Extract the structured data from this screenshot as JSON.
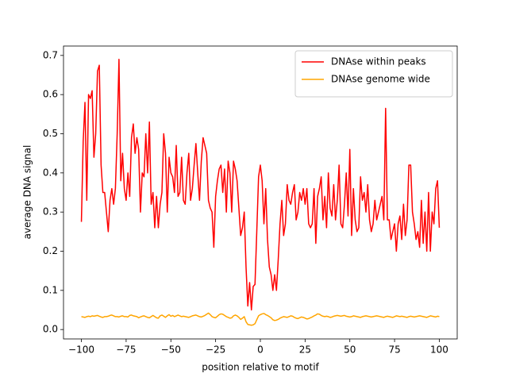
{
  "chart_data": {
    "type": "line",
    "xlabel": "position relative to motif",
    "ylabel": "average DNA signal",
    "xlim": [
      -110,
      110
    ],
    "ylim": [
      -0.024,
      0.724
    ],
    "xticks": [
      {
        "value": -100,
        "label": "−100"
      },
      {
        "value": -75,
        "label": "−75"
      },
      {
        "value": -50,
        "label": "−50"
      },
      {
        "value": -25,
        "label": "−25"
      },
      0,
      25,
      50,
      75,
      100
    ],
    "yticks": [
      {
        "value": 0,
        "label": "0.0"
      },
      0.1,
      0.2,
      0.3,
      0.4,
      0.5,
      0.6,
      0.7
    ],
    "legend": "upper right",
    "x": [
      -100,
      -99,
      -98,
      -97,
      -96,
      -95,
      -94,
      -93,
      -92,
      -91,
      -90,
      -89,
      -88,
      -87,
      -86,
      -85,
      -84,
      -83,
      -82,
      -81,
      -80,
      -79,
      -78,
      -77,
      -76,
      -75,
      -74,
      -73,
      -72,
      -71,
      -70,
      -69,
      -68,
      -67,
      -66,
      -65,
      -64,
      -63,
      -62,
      -61,
      -60,
      -59,
      -58,
      -57,
      -56,
      -55,
      -54,
      -53,
      -52,
      -51,
      -50,
      -49,
      -48,
      -47,
      -46,
      -45,
      -44,
      -43,
      -42,
      -41,
      -40,
      -39,
      -38,
      -37,
      -36,
      -35,
      -34,
      -33,
      -32,
      -31,
      -30,
      -29,
      -28,
      -27,
      -26,
      -25,
      -24,
      -23,
      -22,
      -21,
      -20,
      -19,
      -18,
      -17,
      -16,
      -15,
      -14,
      -13,
      -12,
      -11,
      -10,
      -9,
      -8,
      -7,
      -6,
      -5,
      -4,
      -3,
      -2,
      -1,
      0,
      1,
      2,
      3,
      4,
      5,
      6,
      7,
      8,
      9,
      10,
      11,
      12,
      13,
      14,
      15,
      16,
      17,
      18,
      19,
      20,
      21,
      22,
      23,
      24,
      25,
      26,
      27,
      28,
      29,
      30,
      31,
      32,
      33,
      34,
      35,
      36,
      37,
      38,
      39,
      40,
      41,
      42,
      43,
      44,
      45,
      46,
      47,
      48,
      49,
      50,
      51,
      52,
      53,
      54,
      55,
      56,
      57,
      58,
      59,
      60,
      61,
      62,
      63,
      64,
      65,
      66,
      67,
      68,
      69,
      70,
      71,
      72,
      73,
      74,
      75,
      76,
      77,
      78,
      79,
      80,
      81,
      82,
      83,
      84,
      85,
      86,
      87,
      88,
      89,
      90,
      91,
      92,
      93,
      94,
      95,
      96,
      97,
      98,
      99,
      100
    ],
    "series": [
      {
        "name": "DNAse within peaks",
        "color": "#ff0000",
        "values": [
          0.275,
          0.48,
          0.58,
          0.33,
          0.6,
          0.59,
          0.61,
          0.44,
          0.5,
          0.66,
          0.675,
          0.42,
          0.35,
          0.35,
          0.3,
          0.25,
          0.33,
          0.36,
          0.32,
          0.36,
          0.5,
          0.69,
          0.38,
          0.45,
          0.36,
          0.33,
          0.4,
          0.34,
          0.49,
          0.525,
          0.45,
          0.49,
          0.46,
          0.3,
          0.4,
          0.39,
          0.5,
          0.4,
          0.53,
          0.32,
          0.35,
          0.26,
          0.34,
          0.26,
          0.32,
          0.35,
          0.5,
          0.45,
          0.3,
          0.44,
          0.4,
          0.39,
          0.35,
          0.47,
          0.34,
          0.35,
          0.44,
          0.33,
          0.32,
          0.4,
          0.45,
          0.33,
          0.36,
          0.42,
          0.475,
          0.4,
          0.33,
          0.43,
          0.49,
          0.47,
          0.45,
          0.33,
          0.31,
          0.3,
          0.21,
          0.34,
          0.38,
          0.41,
          0.42,
          0.35,
          0.41,
          0.3,
          0.43,
          0.4,
          0.3,
          0.43,
          0.41,
          0.38,
          0.31,
          0.24,
          0.26,
          0.3,
          0.16,
          0.06,
          0.12,
          0.05,
          0.11,
          0.115,
          0.25,
          0.39,
          0.42,
          0.38,
          0.27,
          0.36,
          0.23,
          0.16,
          0.14,
          0.1,
          0.14,
          0.1,
          0.18,
          0.27,
          0.33,
          0.24,
          0.27,
          0.37,
          0.33,
          0.32,
          0.35,
          0.37,
          0.28,
          0.3,
          0.35,
          0.33,
          0.36,
          0.32,
          0.36,
          0.27,
          0.26,
          0.27,
          0.36,
          0.22,
          0.34,
          0.36,
          0.39,
          0.28,
          0.34,
          0.26,
          0.4,
          0.31,
          0.29,
          0.37,
          0.28,
          0.33,
          0.42,
          0.27,
          0.26,
          0.32,
          0.4,
          0.29,
          0.46,
          0.24,
          0.36,
          0.28,
          0.25,
          0.26,
          0.39,
          0.33,
          0.35,
          0.3,
          0.37,
          0.28,
          0.25,
          0.27,
          0.33,
          0.28,
          0.3,
          0.32,
          0.34,
          0.28,
          0.565,
          0.28,
          0.28,
          0.23,
          0.25,
          0.27,
          0.2,
          0.27,
          0.29,
          0.23,
          0.32,
          0.24,
          0.28,
          0.42,
          0.42,
          0.3,
          0.27,
          0.23,
          0.25,
          0.21,
          0.33,
          0.22,
          0.3,
          0.2,
          0.35,
          0.2,
          0.3,
          0.27,
          0.36,
          0.38,
          0.26
        ]
      },
      {
        "name": "DNAse genome wide",
        "color": "#ffa500",
        "values": [
          0.033,
          0.032,
          0.031,
          0.033,
          0.034,
          0.033,
          0.035,
          0.034,
          0.035,
          0.036,
          0.034,
          0.032,
          0.031,
          0.033,
          0.033,
          0.034,
          0.036,
          0.037,
          0.035,
          0.033,
          0.033,
          0.032,
          0.034,
          0.035,
          0.033,
          0.033,
          0.032,
          0.036,
          0.037,
          0.035,
          0.034,
          0.033,
          0.03,
          0.032,
          0.034,
          0.035,
          0.033,
          0.031,
          0.03,
          0.033,
          0.036,
          0.033,
          0.03,
          0.029,
          0.035,
          0.037,
          0.034,
          0.031,
          0.035,
          0.038,
          0.034,
          0.036,
          0.033,
          0.035,
          0.037,
          0.035,
          0.033,
          0.034,
          0.033,
          0.032,
          0.031,
          0.033,
          0.035,
          0.036,
          0.037,
          0.035,
          0.033,
          0.032,
          0.034,
          0.036,
          0.039,
          0.042,
          0.038,
          0.033,
          0.031,
          0.03,
          0.034,
          0.038,
          0.04,
          0.039,
          0.036,
          0.033,
          0.031,
          0.029,
          0.03,
          0.035,
          0.037,
          0.035,
          0.031,
          0.026,
          0.029,
          0.033,
          0.02,
          0.013,
          0.012,
          0.011,
          0.012,
          0.015,
          0.025,
          0.035,
          0.038,
          0.04,
          0.041,
          0.038,
          0.036,
          0.033,
          0.03,
          0.025,
          0.023,
          0.024,
          0.026,
          0.029,
          0.031,
          0.033,
          0.032,
          0.031,
          0.033,
          0.035,
          0.034,
          0.031,
          0.029,
          0.028,
          0.03,
          0.032,
          0.031,
          0.029,
          0.027,
          0.028,
          0.03,
          0.032,
          0.035,
          0.037,
          0.04,
          0.039,
          0.036,
          0.034,
          0.033,
          0.034,
          0.033,
          0.031,
          0.032,
          0.034,
          0.035,
          0.036,
          0.035,
          0.034,
          0.035,
          0.036,
          0.034,
          0.033,
          0.032,
          0.033,
          0.035,
          0.034,
          0.033,
          0.032,
          0.031,
          0.033,
          0.034,
          0.035,
          0.034,
          0.033,
          0.032,
          0.033,
          0.034,
          0.035,
          0.034,
          0.033,
          0.032,
          0.031,
          0.033,
          0.034,
          0.033,
          0.032,
          0.031,
          0.033,
          0.035,
          0.034,
          0.033,
          0.034,
          0.033,
          0.032,
          0.031,
          0.033,
          0.034,
          0.033,
          0.032,
          0.033,
          0.034,
          0.035,
          0.034,
          0.033,
          0.032,
          0.031,
          0.033,
          0.035,
          0.034,
          0.033,
          0.032,
          0.034,
          0.033
        ]
      }
    ]
  }
}
